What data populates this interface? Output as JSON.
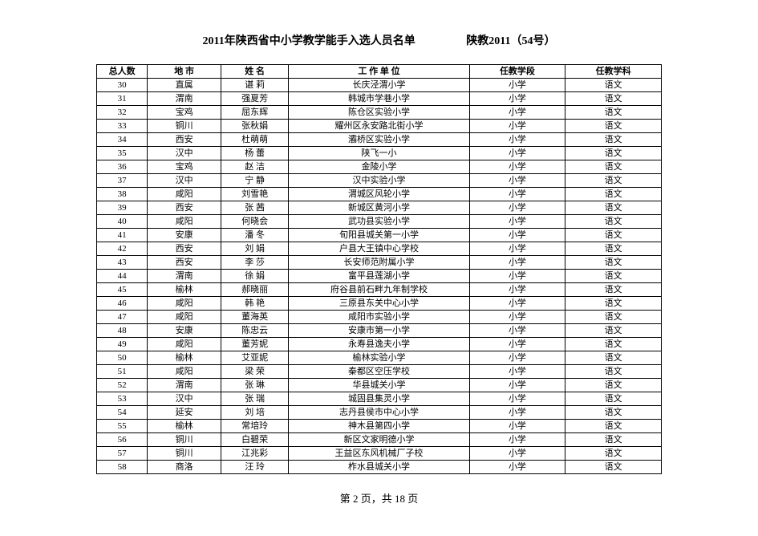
{
  "title_main": "2011年陕西省中小学教学能手入选人员名单",
  "title_doc": "陕教2011（54号）",
  "columns": [
    "总人数",
    "地 市",
    "姓  名",
    "工 作 单 位",
    "任教学段",
    "任教学科"
  ],
  "col_widths": [
    "9%",
    "13%",
    "12%",
    "32%",
    "17%",
    "17%"
  ],
  "rows": [
    [
      "30",
      "直属",
      "谌  莉",
      "长庆泾渭小学",
      "小学",
      "语文"
    ],
    [
      "31",
      "渭南",
      "强夏芳",
      "韩城市学巷小学",
      "小学",
      "语文"
    ],
    [
      "32",
      "宝鸡",
      "屈东辉",
      "陈仓区实验小学",
      "小学",
      "语文"
    ],
    [
      "33",
      "铜川",
      "张秋娟",
      "耀州区永安路北街小学",
      "小学",
      "语文"
    ],
    [
      "34",
      "西安",
      "杜萌萌",
      "灞桥区实验小学",
      "小学",
      "语文"
    ],
    [
      "35",
      "汉中",
      "杨  蕾",
      "陕飞一小",
      "小学",
      "语文"
    ],
    [
      "36",
      "宝鸡",
      "赵  洁",
      "金陵小学",
      "小学",
      "语文"
    ],
    [
      "37",
      "汉中",
      "宁  静",
      "汉中实验小学",
      "小学",
      "语文"
    ],
    [
      "38",
      "咸阳",
      "刘雪艳",
      "渭城区风轮小学",
      "小学",
      "语文"
    ],
    [
      "39",
      "西安",
      "张  茜",
      "新城区黄河小学",
      "小学",
      "语文"
    ],
    [
      "40",
      "咸阳",
      "何晓会",
      "武功县实验小学",
      "小学",
      "语文"
    ],
    [
      "41",
      "安康",
      "潘  冬",
      "旬阳县城关第一小学",
      "小学",
      "语文"
    ],
    [
      "42",
      "西安",
      "刘  娟",
      "户县大王镇中心学校",
      "小学",
      "语文"
    ],
    [
      "43",
      "西安",
      "李  莎",
      "长安师范附属小学",
      "小学",
      "语文"
    ],
    [
      "44",
      "渭南",
      "徐  娟",
      "富平县莲湖小学",
      "小学",
      "语文"
    ],
    [
      "45",
      "榆林",
      "郝晓丽",
      "府谷县前石畔九年制学校",
      "小学",
      "语文"
    ],
    [
      "46",
      "咸阳",
      "韩  艳",
      "三原县东关中心小学",
      "小学",
      "语文"
    ],
    [
      "47",
      "咸阳",
      "董海英",
      "咸阳市实验小学",
      "小学",
      "语文"
    ],
    [
      "48",
      "安康",
      "陈忠云",
      "安康市第一小学",
      "小学",
      "语文"
    ],
    [
      "49",
      "咸阳",
      "董芳妮",
      "永寿县逸夫小学",
      "小学",
      "语文"
    ],
    [
      "50",
      "榆林",
      "艾亚妮",
      "榆林实验小学",
      "小学",
      "语文"
    ],
    [
      "51",
      "咸阳",
      "梁  荣",
      "秦都区空压学校",
      "小学",
      "语文"
    ],
    [
      "52",
      "渭南",
      "张  琳",
      "华县城关小学",
      "小学",
      "语文"
    ],
    [
      "53",
      "汉中",
      "张  瑞",
      "城固县集灵小学",
      "小学",
      "语文"
    ],
    [
      "54",
      "延安",
      "刘  培",
      "志丹县侯市中心小学",
      "小学",
      "语文"
    ],
    [
      "55",
      "榆林",
      "常培玲",
      "神木县第四小学",
      "小学",
      "语文"
    ],
    [
      "56",
      "铜川",
      "白碧荣",
      "新区文家明德小学",
      "小学",
      "语文"
    ],
    [
      "57",
      "铜川",
      "江兆彩",
      "王益区东风机械厂子校",
      "小学",
      "语文"
    ],
    [
      "58",
      "商洛",
      "汪  玲",
      "柞水县城关小学",
      "小学",
      "语文"
    ]
  ],
  "footer": "第 2 页，共 18 页",
  "colors": {
    "background": "#ffffff",
    "text": "#000000",
    "border": "#000000"
  },
  "font": {
    "title_size": 14,
    "cell_size": 11,
    "footer_size": 13
  }
}
